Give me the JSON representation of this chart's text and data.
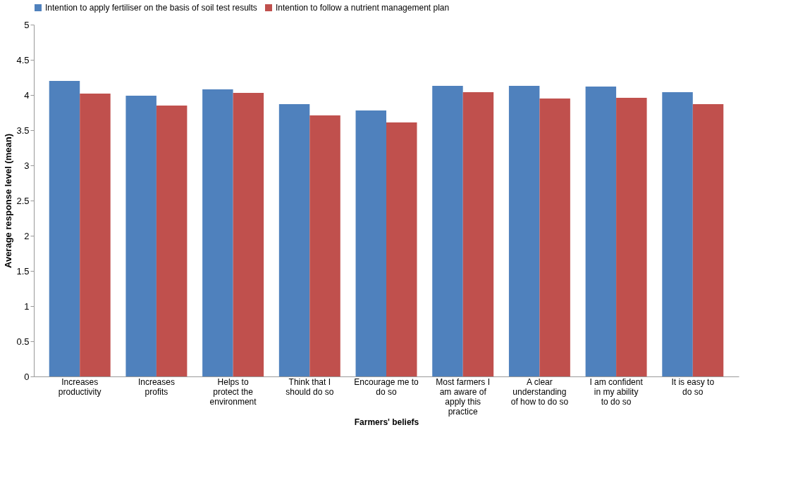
{
  "chart_data": {
    "type": "bar",
    "xlabel": "Farmers' beliefs",
    "ylabel": "Average response  level (mean)",
    "categories": [
      "Increases productivity",
      "Increases profits",
      "Helps to protect the environment",
      "Think that I should do so",
      "Encourage me to do so",
      "Most farmers I am aware of apply this practice",
      "A clear understanding of how to do so",
      "I am confident in my ability to do so",
      "It is easy to do so"
    ],
    "series": [
      {
        "name": "Intention to apply fertiliser on the basis of soil test results",
        "color": "#4f81bd",
        "values": [
          4.2,
          3.99,
          4.08,
          3.87,
          3.78,
          4.13,
          4.13,
          4.12,
          4.04
        ]
      },
      {
        "name": "Intention to follow a nutrient management plan",
        "color": "#c0504d",
        "values": [
          4.02,
          3.85,
          4.03,
          3.71,
          3.61,
          4.04,
          3.95,
          3.96,
          3.87
        ]
      }
    ],
    "ylim": [
      0,
      5
    ],
    "yticks": [
      0,
      0.5,
      1,
      1.5,
      2,
      2.5,
      3,
      3.5,
      4,
      4.5,
      5
    ],
    "grid": false,
    "legend": "top"
  }
}
